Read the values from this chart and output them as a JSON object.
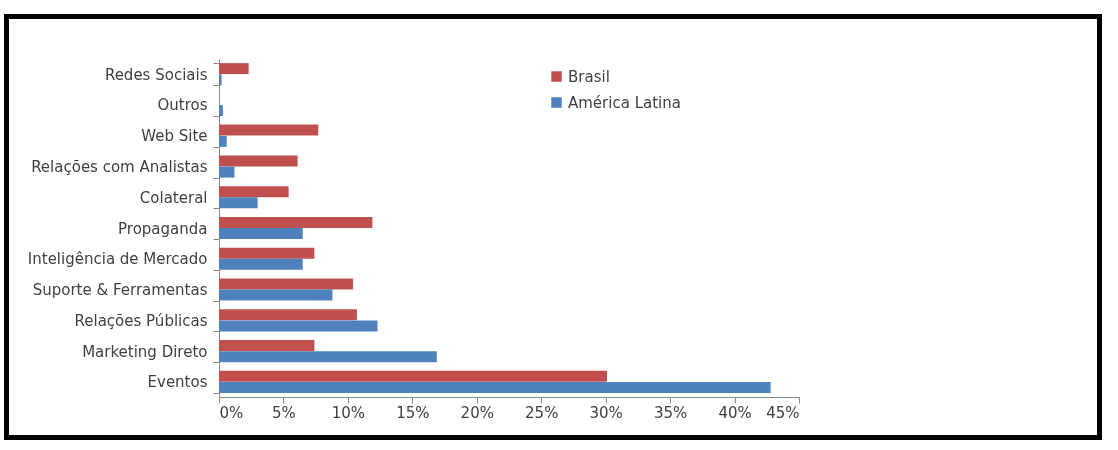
{
  "chart_data": {
    "type": "bar",
    "orientation": "horizontal",
    "categories": [
      "Redes Sociais",
      "Outros",
      "Web Site",
      "Relações com Analistas",
      "Colateral",
      "Propaganda",
      "Inteligência de Mercado",
      "Suporte & Ferramentas",
      "Relações Públicas",
      "Marketing Direto",
      "Eventos"
    ],
    "series": [
      {
        "name": "Brasil",
        "color": "#c0504d",
        "values": [
          2.3,
          0,
          7.7,
          6.1,
          5.4,
          11.9,
          7.4,
          10.4,
          10.7,
          7.4,
          30.1
        ]
      },
      {
        "name": "América Latina",
        "color": "#4f81bd",
        "values": [
          0.2,
          0.3,
          0.6,
          1.2,
          3.0,
          6.5,
          6.5,
          8.8,
          12.3,
          16.9,
          42.8
        ]
      }
    ],
    "xlim": [
      0,
      45
    ],
    "xticks": [
      {
        "value": 0,
        "label": "0%"
      },
      {
        "value": 5,
        "label": "5%"
      },
      {
        "value": 10,
        "label": "10%"
      },
      {
        "value": 15,
        "label": "15%"
      },
      {
        "value": 20,
        "label": "20%"
      },
      {
        "value": 25,
        "label": "25%"
      },
      {
        "value": 30,
        "label": "30%"
      },
      {
        "value": 35,
        "label": "35%"
      },
      {
        "value": 40,
        "label": "40%"
      },
      {
        "value": 45,
        "label": "45%"
      }
    ],
    "legend": "top right",
    "grid": false
  }
}
